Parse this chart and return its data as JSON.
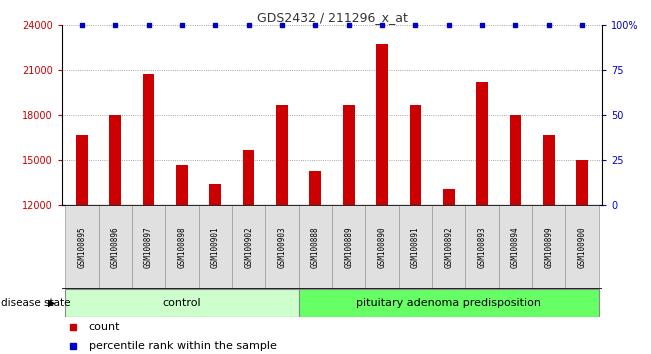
{
  "title": "GDS2432 / 211296_x_at",
  "categories": [
    "GSM100895",
    "GSM100896",
    "GSM100897",
    "GSM100898",
    "GSM100901",
    "GSM100902",
    "GSM100903",
    "GSM100888",
    "GSM100889",
    "GSM100890",
    "GSM100891",
    "GSM100892",
    "GSM100893",
    "GSM100894",
    "GSM100899",
    "GSM100900"
  ],
  "counts": [
    16700,
    18000,
    20700,
    14700,
    13400,
    15700,
    18700,
    14300,
    18700,
    22700,
    18700,
    13100,
    20200,
    18000,
    16700,
    15000
  ],
  "percentile_values": [
    99,
    99,
    99,
    99,
    99,
    99,
    99,
    99,
    99,
    99,
    99,
    99,
    99,
    99,
    99,
    99
  ],
  "n_control": 7,
  "n_total": 16,
  "bar_color": "#cc0000",
  "percentile_color": "#0000cc",
  "ylim_left": [
    12000,
    24000
  ],
  "yticks_left": [
    12000,
    15000,
    18000,
    21000,
    24000
  ],
  "yticks_right": [
    0,
    25,
    50,
    75,
    100
  ],
  "ytick_labels_right": [
    "0",
    "25",
    "50",
    "75",
    "100%"
  ],
  "control_color": "#ccffcc",
  "disease_color": "#66ff66",
  "control_label": "control",
  "disease_label": "pituitary adenoma predisposition",
  "disease_state_label": "disease state",
  "legend_count_label": "count",
  "legend_percentile_label": "percentile rank within the sample",
  "grid_color": "#888888",
  "title_fontsize": 9,
  "axis_fontsize": 7,
  "label_fontsize": 7,
  "bar_width": 0.35
}
